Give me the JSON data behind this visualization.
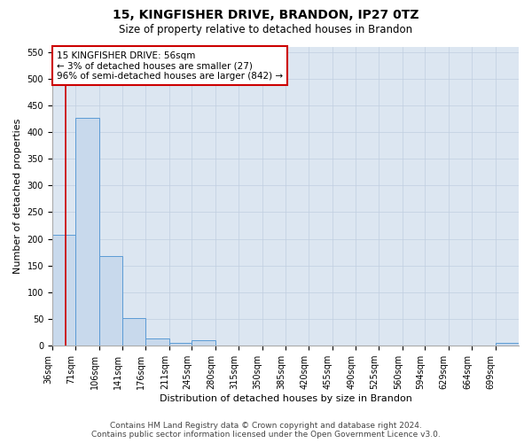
{
  "title": "15, KINGFISHER DRIVE, BRANDON, IP27 0TZ",
  "subtitle": "Size of property relative to detached houses in Brandon",
  "xlabel": "Distribution of detached houses by size in Brandon",
  "ylabel": "Number of detached properties",
  "bin_edges": [
    36,
    71,
    106,
    141,
    176,
    211,
    245,
    280,
    315,
    350,
    385,
    420,
    455,
    490,
    525,
    560,
    594,
    629,
    664,
    699,
    734
  ],
  "bar_heights": [
    207,
    427,
    168,
    52,
    13,
    6,
    10,
    0,
    0,
    0,
    0,
    0,
    0,
    0,
    0,
    0,
    0,
    0,
    0,
    5
  ],
  "bar_color": "#c8d9ec",
  "bar_edge_color": "#5b9bd5",
  "bar_linewidth": 0.7,
  "ylim": [
    0,
    560
  ],
  "yticks": [
    0,
    50,
    100,
    150,
    200,
    250,
    300,
    350,
    400,
    450,
    500,
    550
  ],
  "grid_color": "#c0cfe0",
  "bg_color": "#dce6f1",
  "annotation_line1": "15 KINGFISHER DRIVE: 56sqm",
  "annotation_line2": "← 3% of detached houses are smaller (27)",
  "annotation_line3": "96% of semi-detached houses are larger (842) →",
  "annotation_box_color": "#ffffff",
  "annotation_box_edge": "#cc0000",
  "property_line_x": 56,
  "property_line_color": "#cc0000",
  "footnote": "Contains HM Land Registry data © Crown copyright and database right 2024.\nContains public sector information licensed under the Open Government Licence v3.0.",
  "title_fontsize": 10,
  "subtitle_fontsize": 8.5,
  "xlabel_fontsize": 8,
  "ylabel_fontsize": 8,
  "tick_fontsize": 7,
  "annotation_fontsize": 7.5,
  "footnote_fontsize": 6.5
}
